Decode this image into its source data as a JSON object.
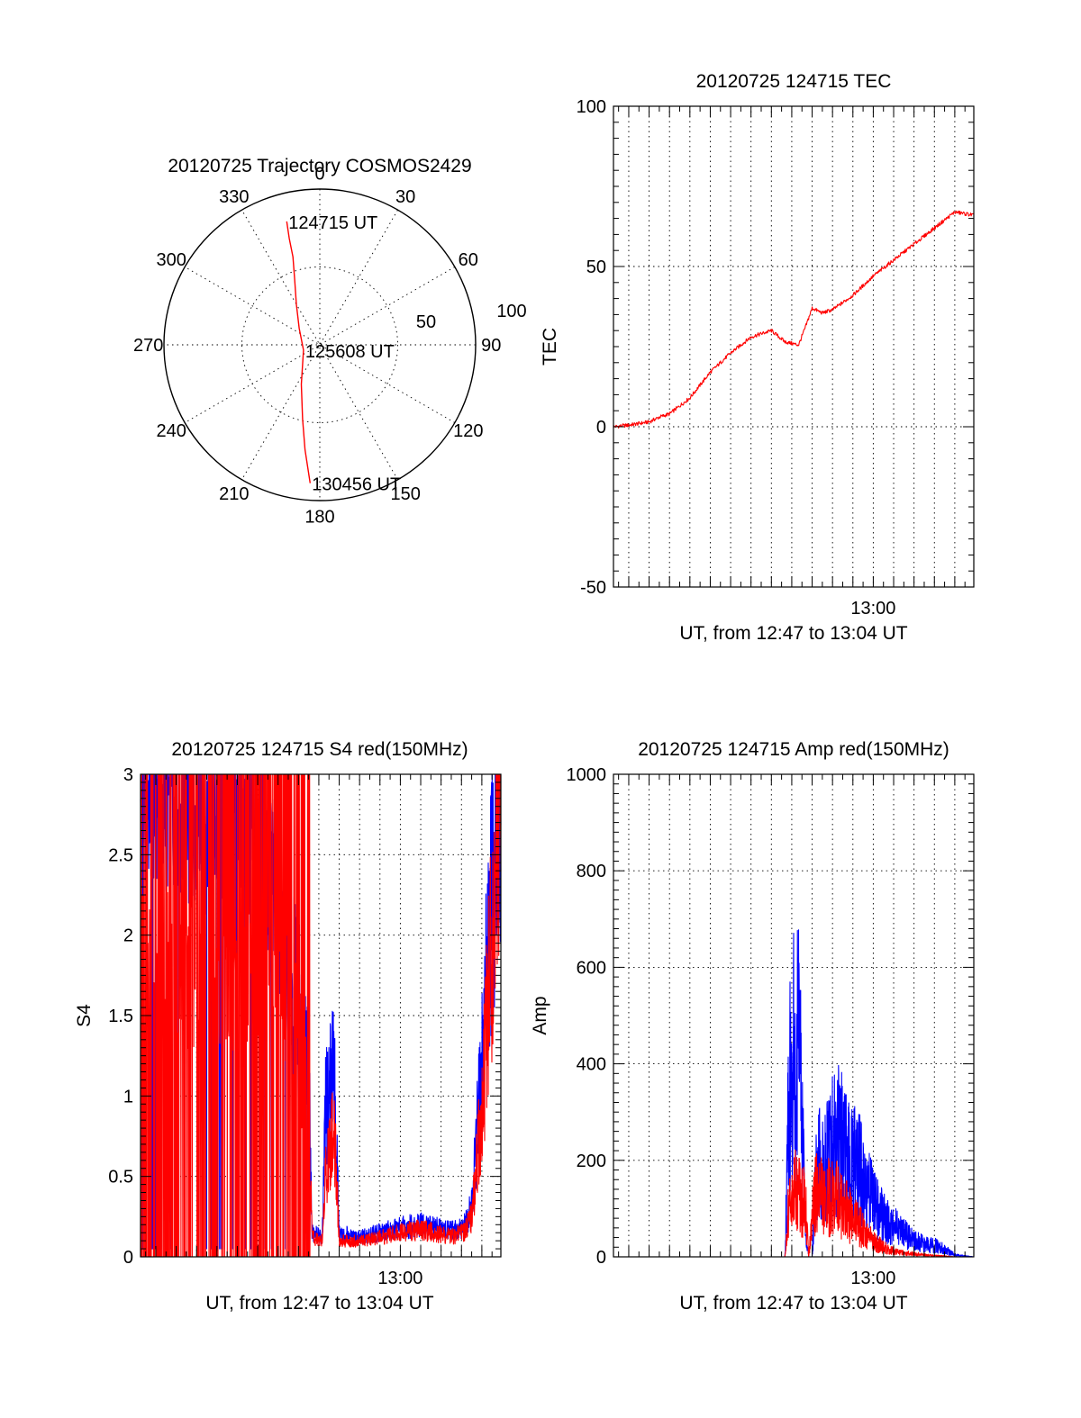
{
  "colors": {
    "red": "#ff0000",
    "blue": "#0000ff",
    "axis": "#000000"
  },
  "chart_data": [
    {
      "type": "polar",
      "title": "20120725 Trajectory COSMOS2429",
      "angle_labels": [
        "0",
        "30",
        "60",
        "90",
        "120",
        "150",
        "180",
        "210",
        "240",
        "270",
        "300",
        "330"
      ],
      "radius_labels": [
        "50",
        "100"
      ],
      "rlim": [
        0,
        100
      ],
      "series": [
        {
          "color": "#ff0000",
          "points": [
            {
              "az": 345,
              "r": 82
            },
            {
              "az": 344,
              "r": 71
            },
            {
              "az": 343,
              "r": 59
            },
            {
              "az": 339,
              "r": 45
            },
            {
              "az": 330,
              "r": 30
            },
            {
              "az": 309,
              "r": 17
            },
            {
              "az": 252,
              "r": 11
            },
            {
              "az": 205,
              "r": 28
            },
            {
              "az": 193,
              "r": 49
            },
            {
              "az": 188,
              "r": 68
            },
            {
              "az": 184,
              "r": 89
            }
          ]
        }
      ],
      "annotations": [
        {
          "text": "124715 UT",
          "az": 345,
          "r": 82
        },
        {
          "text": "125608 UT",
          "az": 252,
          "r": 11
        },
        {
          "text": "130456 UT",
          "az": 184,
          "r": 89
        }
      ]
    },
    {
      "type": "line",
      "title": "20120725 124715 TEC",
      "xlabel": "UT, from 12:47 to 13:04 UT",
      "ylabel": "TEC",
      "xlim": [
        "12:47:15",
        "13:04:56"
      ],
      "ylim": [
        -50,
        100
      ],
      "yticks": [
        "-50",
        "0",
        "50",
        "100"
      ],
      "xticks": [
        "13:00"
      ],
      "grid": true,
      "series": [
        {
          "color": "#ff0000",
          "x": [
            "12:47:15",
            "12:48:00",
            "12:49:00",
            "12:49:30",
            "12:50:00",
            "12:51:00",
            "12:52:00",
            "12:53:00",
            "12:54:00",
            "12:55:00",
            "12:55:40",
            "12:56:20",
            "12:56:40",
            "12:57:00",
            "12:57:30",
            "12:57:45",
            "12:58:00",
            "12:59:00",
            "13:00:00",
            "13:01:00",
            "13:02:00",
            "13:03:00",
            "13:04:00",
            "13:04:56"
          ],
          "y": [
            0,
            0.5,
            1.5,
            3,
            4,
            9,
            17,
            23,
            28,
            30,
            26.5,
            25.5,
            31,
            37,
            35.5,
            36,
            36.5,
            41,
            47,
            52,
            57,
            62,
            67,
            66
          ]
        }
      ]
    },
    {
      "type": "line",
      "title": "20120725 124715 S4 red(150MHz)",
      "xlabel": "UT, from 12:47 to 13:04 UT",
      "ylabel": "S4",
      "xlim": [
        "12:47:15",
        "13:04:56"
      ],
      "ylim": [
        0,
        3
      ],
      "yticks": [
        "0",
        "0.5",
        "1",
        "1.5",
        "2",
        "2.5",
        "3"
      ],
      "xticks": [
        "13:00"
      ],
      "grid": true,
      "series": [
        {
          "color": "#0000ff",
          "x": [
            "12:47:15",
            "12:49:00",
            "12:51:00",
            "12:53:00",
            "12:54:00",
            "12:55:00",
            "12:55:30",
            "12:55:40",
            "12:56:10",
            "12:56:20",
            "12:56:45",
            "12:57:00",
            "12:58:00",
            "12:59:00",
            "13:00:00",
            "13:01:00",
            "13:02:00",
            "13:02:40",
            "13:03:10",
            "13:03:30",
            "13:04:00",
            "13:04:30",
            "13:04:56"
          ],
          "y": [
            2.9,
            2.8,
            2.7,
            2.6,
            2.2,
            1.5,
            1.1,
            0.15,
            0.12,
            0.9,
            1.2,
            0.15,
            0.12,
            0.15,
            0.18,
            0.2,
            0.17,
            0.16,
            0.2,
            0.3,
            1.2,
            2.4,
            2.9
          ]
        },
        {
          "color": "#ff0000",
          "x": [
            "12:47:15",
            "12:49:00",
            "12:51:00",
            "12:53:00",
            "12:54:00",
            "12:55:00",
            "12:55:30",
            "12:55:40",
            "12:56:10",
            "12:56:20",
            "12:56:45",
            "12:57:00",
            "12:58:00",
            "12:59:00",
            "13:00:00",
            "13:01:00",
            "13:02:00",
            "13:02:40",
            "13:03:10",
            "13:03:30",
            "13:04:00",
            "13:04:30",
            "13:04:56"
          ],
          "y": [
            1.9,
            1.8,
            1.7,
            1.8,
            1.9,
            1.3,
            1.0,
            0.12,
            0.1,
            0.5,
            0.8,
            0.1,
            0.1,
            0.12,
            0.15,
            0.17,
            0.14,
            0.13,
            0.16,
            0.25,
            0.9,
            2.0,
            2.8
          ]
        }
      ]
    },
    {
      "type": "line",
      "title": "20120725 124715 Amp red(150MHz)",
      "xlabel": "UT, from 12:47 to 13:04 UT",
      "ylabel": "Amp",
      "xlim": [
        "12:47:15",
        "13:04:56"
      ],
      "ylim": [
        0,
        1000
      ],
      "yticks": [
        "0",
        "200",
        "400",
        "600",
        "800",
        "1000"
      ],
      "xticks": [
        "13:00"
      ],
      "grid": true,
      "series": [
        {
          "color": "#0000ff",
          "x": [
            "12:47:15",
            "12:55:40",
            "12:55:50",
            "12:56:00",
            "12:56:10",
            "12:56:20",
            "12:56:30",
            "12:56:40",
            "12:56:50",
            "12:57:00",
            "12:57:10",
            "12:57:20",
            "12:57:40",
            "12:58:00",
            "12:58:20",
            "12:58:40",
            "12:59:00",
            "12:59:20",
            "12:59:40",
            "13:00:00",
            "13:00:30",
            "13:01:00",
            "13:01:30",
            "13:02:00",
            "13:02:30",
            "13:03:00",
            "13:03:30",
            "13:04:00",
            "13:04:56"
          ],
          "y": [
            0,
            0,
            350,
            550,
            480,
            520,
            380,
            60,
            0,
            0,
            200,
            260,
            240,
            280,
            300,
            250,
            240,
            220,
            180,
            140,
            100,
            80,
            60,
            40,
            35,
            30,
            20,
            5,
            0
          ]
        },
        {
          "color": "#ff0000",
          "x": [
            "12:47:15",
            "12:55:40",
            "12:55:50",
            "12:56:00",
            "12:56:10",
            "12:56:20",
            "12:56:30",
            "12:56:40",
            "12:56:50",
            "12:57:00",
            "12:57:10",
            "12:57:20",
            "12:57:40",
            "12:58:00",
            "12:58:20",
            "12:58:40",
            "12:59:00",
            "12:59:20",
            "12:59:40",
            "13:00:00",
            "13:00:30",
            "13:01:00",
            "13:01:30",
            "13:02:00",
            "13:02:30",
            "13:03:00",
            "13:03:30",
            "13:04:00",
            "13:04:56"
          ],
          "y": [
            0,
            0,
            120,
            160,
            170,
            150,
            160,
            140,
            0,
            100,
            180,
            170,
            150,
            160,
            140,
            120,
            100,
            80,
            60,
            40,
            25,
            15,
            10,
            8,
            5,
            3,
            2,
            0,
            0
          ]
        }
      ]
    }
  ]
}
